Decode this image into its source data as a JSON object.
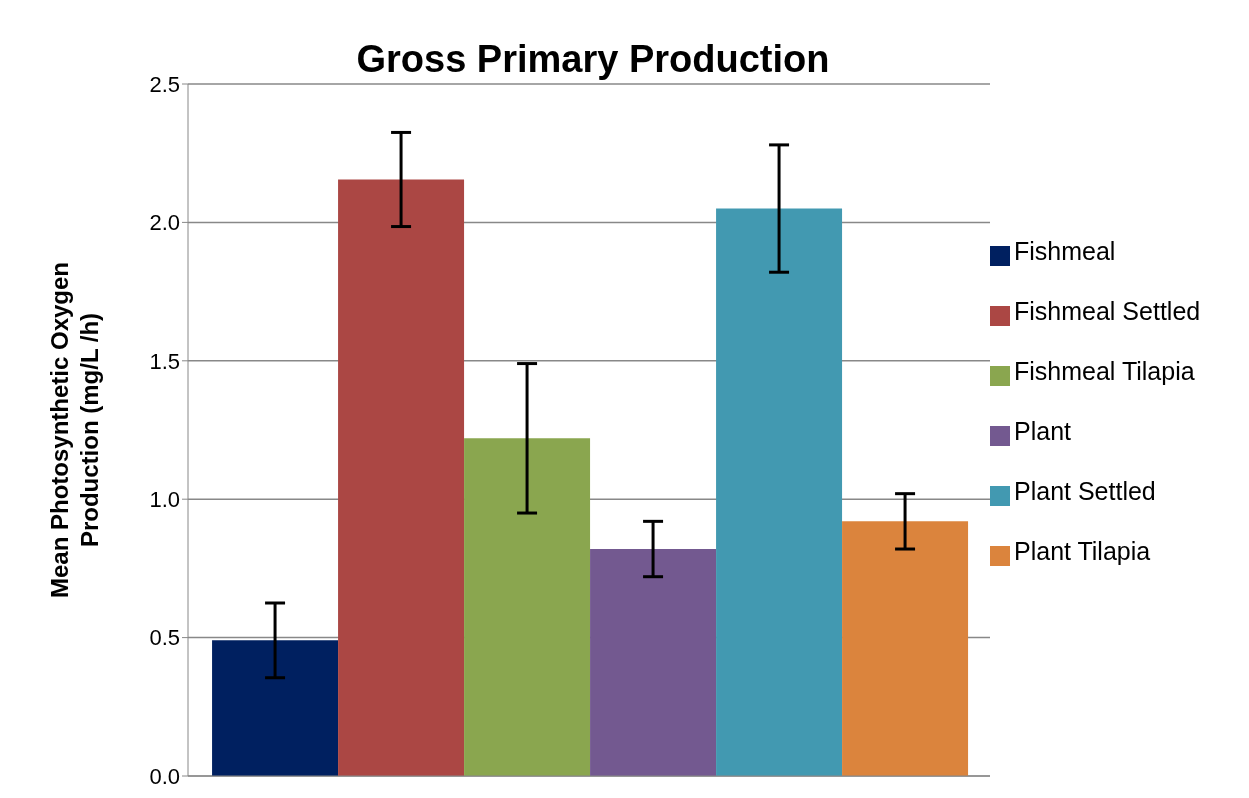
{
  "chart_data": {
    "type": "bar",
    "title": "Gross Primary Production",
    "ylabel": "Mean Photosynthetic Oxygen Production (mg/L /h)",
    "categories": [
      null
    ],
    "series": [
      {
        "name": "Fishmeal",
        "color": "#002060",
        "values": [
          0.49
        ],
        "errors": [
          0.135
        ]
      },
      {
        "name": "Fishmeal Settled",
        "color": "#ab4744",
        "values": [
          2.155
        ],
        "errors": [
          0.17
        ]
      },
      {
        "name": "Fishmeal Tilapia",
        "color": "#8aa64f",
        "values": [
          1.22
        ],
        "errors": [
          0.27
        ]
      },
      {
        "name": "Plant",
        "color": "#735990",
        "values": [
          0.82
        ],
        "errors": [
          0.1
        ]
      },
      {
        "name": "Plant Settled",
        "color": "#4299b1",
        "values": [
          2.05
        ],
        "errors": [
          0.23
        ]
      },
      {
        "name": "Plant Tilapia",
        "color": "#db843d",
        "values": [
          0.92
        ],
        "errors": [
          0.1
        ]
      }
    ],
    "ylim": [
      0,
      2.5
    ],
    "yticks": [
      {
        "value": 0,
        "label": "0.0"
      },
      {
        "value": 0.5,
        "label": "0.5"
      },
      {
        "value": 1,
        "label": "1.0"
      },
      {
        "value": 1.5,
        "label": "1.5"
      },
      {
        "value": 2,
        "label": "2.0"
      },
      {
        "value": 2.5,
        "label": "2.5"
      }
    ],
    "grid": "y",
    "legend": "right"
  }
}
